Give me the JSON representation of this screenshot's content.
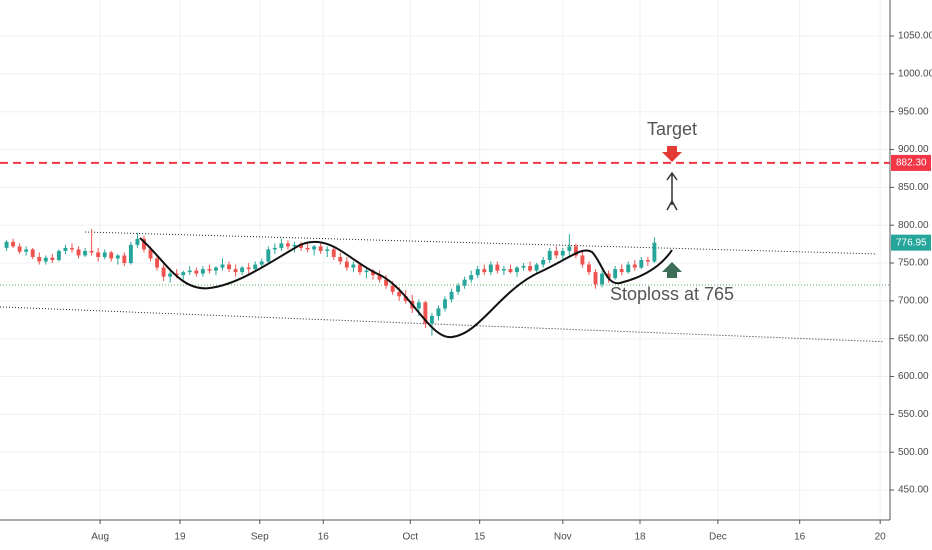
{
  "chart_data": {
    "type": "candlestick",
    "up_color": "#26a69a",
    "down_color": "#ef5350",
    "grid": true,
    "xlim": [
      -1,
      135
    ],
    "ylim": [
      410.4,
      1097.6
    ],
    "xticks": [
      {
        "value": 14.3,
        "label": "Aug"
      },
      {
        "value": 26.5,
        "label": "19"
      },
      {
        "value": 38.7,
        "label": "Sep"
      },
      {
        "value": 48.4,
        "label": "16"
      },
      {
        "value": 61.7,
        "label": "Oct"
      },
      {
        "value": 72.3,
        "label": "15"
      },
      {
        "value": 85,
        "label": "Nov"
      },
      {
        "value": 96.8,
        "label": "18"
      },
      {
        "value": 108.7,
        "label": "Dec"
      },
      {
        "value": 121.2,
        "label": "16"
      },
      {
        "value": 133.5,
        "label": "20"
      }
    ],
    "yticks": [
      {
        "value": 450,
        "label": "450.00"
      },
      {
        "value": 500,
        "label": "500.00"
      },
      {
        "value": 550,
        "label": "550.00"
      },
      {
        "value": 600,
        "label": "600.00"
      },
      {
        "value": 650,
        "label": "650.00"
      },
      {
        "value": 700,
        "label": "700.00"
      },
      {
        "value": 750,
        "label": "750.00"
      },
      {
        "value": 800,
        "label": "800.00"
      },
      {
        "value": 850,
        "label": "850.00"
      },
      {
        "value": 900,
        "label": "900.00"
      },
      {
        "value": 950,
        "label": "950.00"
      },
      {
        "value": 1000,
        "label": "1000.00"
      },
      {
        "value": 1050,
        "label": "1050.00"
      }
    ],
    "x": [
      0,
      1,
      2,
      3,
      4,
      5,
      6,
      7,
      8,
      9,
      10,
      11,
      12,
      13,
      14,
      15,
      16,
      17,
      18,
      19,
      20,
      21,
      22,
      23,
      24,
      25,
      26,
      27,
      28,
      29,
      30,
      31,
      32,
      33,
      34,
      35,
      36,
      37,
      38,
      39,
      40,
      41,
      42,
      43,
      44,
      45,
      46,
      47,
      48,
      49,
      50,
      51,
      52,
      53,
      54,
      55,
      56,
      57,
      58,
      59,
      60,
      61,
      62,
      63,
      64,
      65,
      66,
      67,
      68,
      69,
      70,
      71,
      72,
      73,
      74,
      75,
      76,
      77,
      78,
      79,
      80,
      81,
      82,
      83,
      84,
      85,
      86,
      87,
      88,
      89,
      90,
      91,
      92,
      93,
      94,
      95,
      96,
      97,
      98,
      99
    ],
    "ohlc": [
      [
        770,
        780,
        766,
        778
      ],
      [
        778,
        782,
        770,
        772
      ],
      [
        772,
        776,
        762,
        765
      ],
      [
        765,
        772,
        760,
        768
      ],
      [
        768,
        770,
        755,
        758
      ],
      [
        758,
        764,
        748,
        752
      ],
      [
        752,
        760,
        748,
        757
      ],
      [
        757,
        762,
        750,
        754
      ],
      [
        754,
        768,
        752,
        766
      ],
      [
        766,
        774,
        762,
        770
      ],
      [
        770,
        776,
        764,
        768
      ],
      [
        768,
        772,
        756,
        760
      ],
      [
        760,
        770,
        758,
        766
      ],
      [
        766,
        795,
        760,
        764
      ],
      [
        764,
        770,
        752,
        758
      ],
      [
        758,
        768,
        755,
        764
      ],
      [
        764,
        766,
        752,
        756
      ],
      [
        756,
        762,
        748,
        760
      ],
      [
        760,
        764,
        746,
        750
      ],
      [
        750,
        778,
        748,
        774
      ],
      [
        774,
        790,
        770,
        782
      ],
      [
        782,
        786,
        764,
        768
      ],
      [
        768,
        772,
        752,
        756
      ],
      [
        756,
        760,
        740,
        744
      ],
      [
        744,
        748,
        726,
        732
      ],
      [
        732,
        740,
        724,
        736
      ],
      [
        736,
        742,
        730,
        734
      ],
      [
        734,
        740,
        728,
        738
      ],
      [
        738,
        746,
        734,
        740
      ],
      [
        740,
        744,
        732,
        736
      ],
      [
        736,
        746,
        732,
        742
      ],
      [
        742,
        748,
        736,
        740
      ],
      [
        740,
        746,
        734,
        744
      ],
      [
        744,
        756,
        740,
        748
      ],
      [
        748,
        752,
        738,
        742
      ],
      [
        742,
        748,
        732,
        738
      ],
      [
        738,
        746,
        734,
        744
      ],
      [
        744,
        750,
        736,
        742
      ],
      [
        742,
        752,
        738,
        748
      ],
      [
        748,
        756,
        744,
        752
      ],
      [
        752,
        772,
        750,
        768
      ],
      [
        768,
        776,
        762,
        770
      ],
      [
        770,
        782,
        766,
        776
      ],
      [
        776,
        780,
        768,
        772
      ],
      [
        772,
        778,
        764,
        774
      ],
      [
        774,
        778,
        766,
        770
      ],
      [
        770,
        776,
        764,
        768
      ],
      [
        768,
        774,
        760,
        772
      ],
      [
        772,
        776,
        762,
        766
      ],
      [
        766,
        772,
        758,
        768
      ],
      [
        768,
        772,
        754,
        758
      ],
      [
        758,
        764,
        748,
        752
      ],
      [
        752,
        758,
        740,
        744
      ],
      [
        744,
        752,
        738,
        748
      ],
      [
        748,
        750,
        734,
        738
      ],
      [
        738,
        744,
        730,
        740
      ],
      [
        740,
        742,
        728,
        734
      ],
      [
        734,
        740,
        724,
        728
      ],
      [
        728,
        734,
        716,
        720
      ],
      [
        720,
        726,
        708,
        712
      ],
      [
        712,
        718,
        700,
        706
      ],
      [
        706,
        714,
        696,
        700
      ],
      [
        700,
        708,
        684,
        690
      ],
      [
        690,
        702,
        680,
        698
      ],
      [
        698,
        700,
        664,
        670
      ],
      [
        670,
        684,
        654,
        680
      ],
      [
        680,
        694,
        674,
        690
      ],
      [
        690,
        706,
        686,
        702
      ],
      [
        702,
        716,
        698,
        712
      ],
      [
        712,
        724,
        708,
        720
      ],
      [
        720,
        732,
        716,
        728
      ],
      [
        728,
        740,
        724,
        734
      ],
      [
        734,
        746,
        730,
        742
      ],
      [
        742,
        748,
        734,
        738
      ],
      [
        738,
        752,
        734,
        748
      ],
      [
        748,
        752,
        736,
        740
      ],
      [
        740,
        746,
        734,
        742
      ],
      [
        742,
        748,
        736,
        738
      ],
      [
        738,
        746,
        732,
        744
      ],
      [
        744,
        750,
        740,
        746
      ],
      [
        746,
        752,
        738,
        740
      ],
      [
        740,
        750,
        736,
        748
      ],
      [
        748,
        758,
        744,
        754
      ],
      [
        754,
        770,
        750,
        766
      ],
      [
        766,
        772,
        756,
        760
      ],
      [
        760,
        770,
        754,
        766
      ],
      [
        766,
        788,
        760,
        772
      ],
      [
        772,
        776,
        756,
        760
      ],
      [
        760,
        766,
        744,
        748
      ],
      [
        748,
        752,
        734,
        738
      ],
      [
        738,
        742,
        716,
        722
      ],
      [
        722,
        740,
        718,
        736
      ],
      [
        736,
        740,
        724,
        730
      ],
      [
        730,
        746,
        728,
        742
      ],
      [
        742,
        748,
        734,
        738
      ],
      [
        738,
        752,
        736,
        748
      ],
      [
        748,
        754,
        740,
        744
      ],
      [
        744,
        758,
        742,
        754
      ],
      [
        754,
        758,
        746,
        752
      ],
      [
        752,
        784,
        750,
        776.95
      ]
    ],
    "hline": {
      "value": 882.3,
      "label": "882.30",
      "color": "#f23645"
    },
    "support": {
      "value": 721,
      "color": "#4caf50"
    },
    "channel": [
      {
        "x": [
          12,
          133
        ],
        "values": [
          791,
          762
        ]
      },
      {
        "x": [
          -1,
          134
        ],
        "values": [
          692,
          646
        ]
      }
    ],
    "annotations": {
      "target": "Target",
      "stoploss": "Stoploss at 765"
    }
  }
}
